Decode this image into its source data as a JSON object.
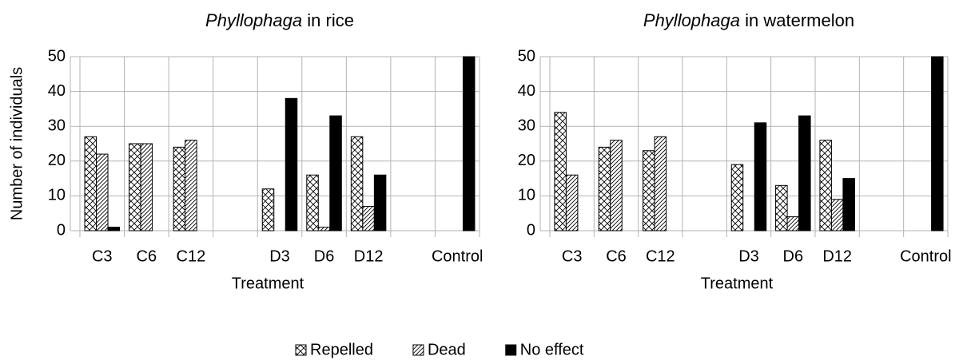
{
  "chart_data": [
    {
      "type": "bar",
      "title": "Phyllophaga in rice",
      "x_label": "Treatment",
      "y_label": "Number of individuals",
      "categories": [
        "C3",
        "C6",
        "C12",
        null,
        "D3",
        "D6",
        "D12",
        null,
        "Control"
      ],
      "series": [
        {
          "name": "Repelled",
          "color": "#000000",
          "pattern": "crosshatch",
          "values": [
            27,
            25,
            24,
            null,
            12,
            16,
            27,
            null,
            0
          ]
        },
        {
          "name": "Dead",
          "color": "#000000",
          "pattern": "diagonal",
          "values": [
            22,
            25,
            26,
            null,
            0,
            1,
            7,
            null,
            0
          ]
        },
        {
          "name": "No effect",
          "color": "#000000",
          "pattern": "solid",
          "values": [
            1,
            0,
            0,
            null,
            38,
            33,
            16,
            null,
            50
          ]
        }
      ],
      "ylim": [
        0,
        50
      ],
      "yticks": [
        0,
        10,
        20,
        30,
        40,
        50
      ],
      "grid": true
    },
    {
      "type": "bar",
      "title": "Phyllophaga in watermelon",
      "x_label": "Treatment",
      "categories": [
        "C3",
        "C6",
        "C12",
        null,
        "D3",
        "D6",
        "D12",
        null,
        "Control"
      ],
      "series": [
        {
          "name": "Repelled",
          "color": "#000000",
          "pattern": "crosshatch",
          "values": [
            34,
            24,
            23,
            null,
            19,
            13,
            26,
            null,
            0
          ]
        },
        {
          "name": "Dead",
          "color": "#000000",
          "pattern": "diagonal",
          "values": [
            16,
            26,
            27,
            null,
            0,
            4,
            9,
            null,
            0
          ]
        },
        {
          "name": "No effect",
          "color": "#000000",
          "pattern": "solid",
          "values": [
            0,
            0,
            0,
            null,
            31,
            33,
            15,
            null,
            50
          ]
        }
      ],
      "ylim": [
        0,
        50
      ],
      "yticks": [
        0,
        10,
        20,
        30,
        40,
        50
      ],
      "grid": true
    }
  ]
}
